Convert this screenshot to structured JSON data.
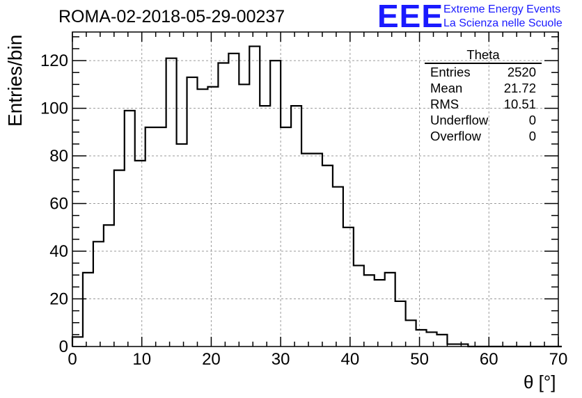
{
  "title": "ROMA-02-2018-05-29-00237",
  "logo": {
    "letters": "EEE",
    "line1": "Extreme Energy Events",
    "line2": "La Scienza nelle Scuole"
  },
  "stats": {
    "title": "Theta",
    "rows": [
      {
        "label": "Entries",
        "value": "2520"
      },
      {
        "label": "Mean",
        "value": "21.72"
      },
      {
        "label": "RMS",
        "value": "10.51"
      },
      {
        "label": "Underflow",
        "value": "0"
      },
      {
        "label": "Overflow",
        "value": "0"
      }
    ]
  },
  "chart_data": {
    "type": "bar",
    "style": "step-histogram",
    "title": "ROMA-02-2018-05-29-00237",
    "xlabel": "θ [°]",
    "ylabel": "Entries/bin",
    "xlim": [
      0,
      70
    ],
    "ylim": [
      0,
      132
    ],
    "grid": true,
    "bin_width": 1.5,
    "bin_start": 0,
    "values": [
      4,
      31,
      44,
      51,
      74,
      99,
      78,
      92,
      92,
      121,
      85,
      113,
      108,
      109,
      119,
      123,
      110,
      126,
      101,
      120,
      92,
      101,
      81,
      81,
      76,
      67,
      50,
      34,
      30,
      28,
      31,
      19,
      11,
      7,
      6,
      5,
      1,
      1,
      0,
      0,
      0,
      0,
      0,
      0,
      0,
      0,
      0
    ],
    "x_ticks": [
      "0",
      "10",
      "20",
      "30",
      "40",
      "50",
      "60",
      "70"
    ],
    "y_ticks": [
      "0",
      "20",
      "40",
      "60",
      "80",
      "100",
      "120"
    ],
    "line_color": "#000000",
    "grid_color": "#9a9a9a"
  }
}
